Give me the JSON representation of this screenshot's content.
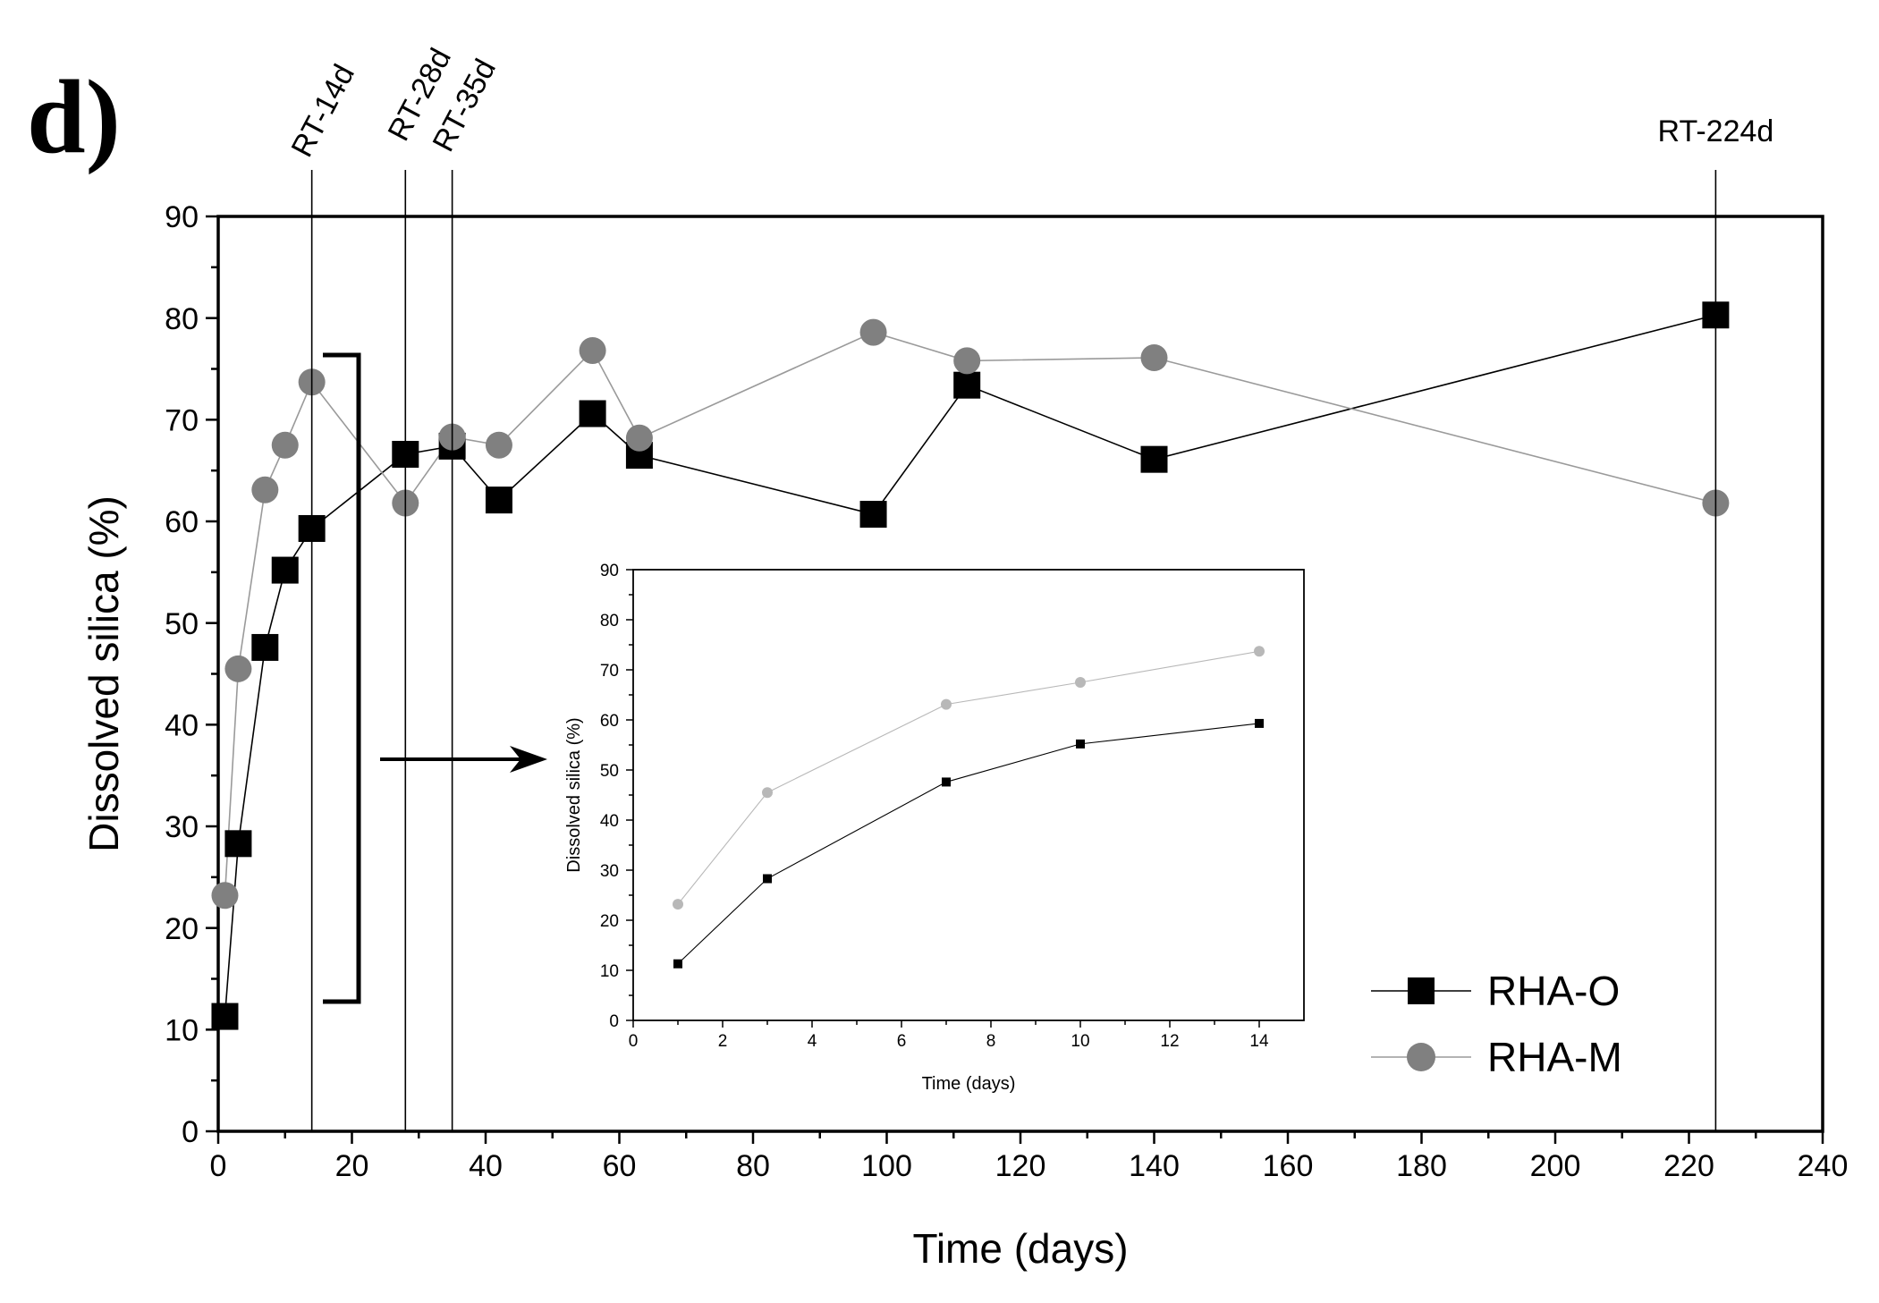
{
  "panel_label": "d)",
  "chart_data": [
    {
      "type": "line",
      "name": "main",
      "xlabel": "Time (days)",
      "ylabel": "Dissolved silica (%)",
      "xlim": [
        0,
        240
      ],
      "ylim": [
        0,
        90
      ],
      "xticks": [
        0,
        20,
        40,
        60,
        80,
        100,
        120,
        140,
        160,
        180,
        200,
        220,
        240
      ],
      "yticks": [
        0,
        10,
        20,
        30,
        40,
        50,
        60,
        70,
        80,
        90
      ],
      "grid": false,
      "legend": "bottom-right",
      "reference_lines": [
        {
          "x": 14,
          "label": "RT-14d"
        },
        {
          "x": 28,
          "label": "RT-28d"
        },
        {
          "x": 35,
          "label": "RT-35d"
        },
        {
          "x": 224,
          "label": "RT-224d"
        }
      ],
      "series": [
        {
          "name": "RHA-O",
          "marker": "square",
          "color": "#000000",
          "x": [
            1,
            3,
            7,
            10,
            14,
            28,
            35,
            42,
            56,
            63,
            98,
            112,
            140,
            224
          ],
          "y": [
            11.3,
            28.3,
            47.6,
            55.2,
            59.3,
            66.6,
            67.4,
            62.1,
            70.6,
            66.5,
            60.7,
            73.4,
            66.1,
            80.3
          ]
        },
        {
          "name": "RHA-M",
          "marker": "circle",
          "color": "#808080",
          "x": [
            1,
            3,
            7,
            10,
            14,
            28,
            35,
            42,
            56,
            63,
            98,
            112,
            140,
            224
          ],
          "y": [
            23.2,
            45.5,
            63.1,
            67.5,
            73.7,
            61.8,
            68.3,
            67.5,
            76.8,
            68.2,
            78.6,
            75.8,
            76.1,
            61.8
          ]
        }
      ]
    },
    {
      "type": "line",
      "name": "inset",
      "xlabel": "Time (days)",
      "ylabel": "Dissolved silica (%)",
      "xlim": [
        0,
        15
      ],
      "ylim": [
        0,
        90
      ],
      "xticks": [
        0,
        2,
        4,
        6,
        8,
        10,
        12,
        14
      ],
      "yticks": [
        0,
        10,
        20,
        30,
        40,
        50,
        60,
        70,
        80,
        90
      ],
      "grid": false,
      "series": [
        {
          "name": "RHA-O",
          "marker": "square",
          "color": "#000000",
          "x": [
            1,
            3,
            7,
            10,
            14
          ],
          "y": [
            11.3,
            28.3,
            47.6,
            55.2,
            59.3
          ]
        },
        {
          "name": "RHA-M",
          "marker": "circle",
          "color": "#b8b8b8",
          "x": [
            1,
            3,
            7,
            10,
            14
          ],
          "y": [
            23.2,
            45.5,
            63.1,
            67.5,
            73.7
          ]
        }
      ]
    }
  ]
}
